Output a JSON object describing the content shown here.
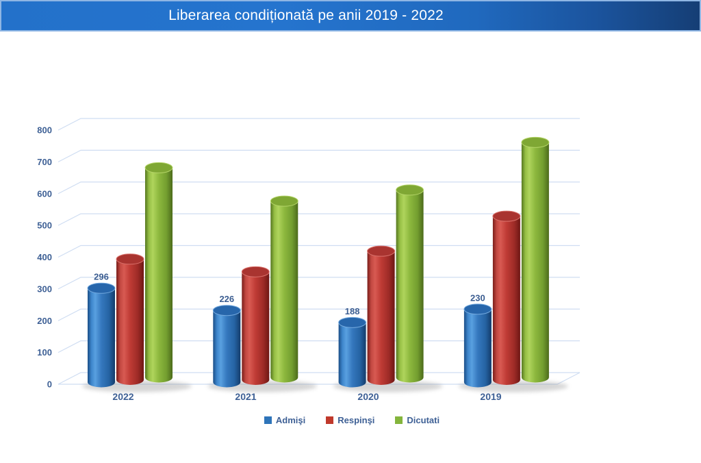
{
  "header": {
    "title": "Liberarea condiționată pe anii 2019 - 2022",
    "background_left_color": "#2371CA",
    "background_right_color": "#153E75",
    "border_color": "#8FB6E4",
    "text_color": "#FFFFFF"
  },
  "chart_data": {
    "type": "bar",
    "subtype": "3d-cylinder",
    "title": "Liberarea condiționată pe anii 2019 - 2022",
    "categories": [
      "2022",
      "2021",
      "2020",
      "2019"
    ],
    "series": [
      {
        "name": "Admişi",
        "color": "#2E74B9",
        "values": [
          296,
          226,
          188,
          230
        ],
        "data_labels_shown": true,
        "estimated": false
      },
      {
        "name": "Respinşi",
        "color": "#C0392B",
        "values": [
          380,
          340,
          405,
          515
        ],
        "data_labels_shown": false,
        "estimated": true
      },
      {
        "name": "Dicutati",
        "color": "#84B53C",
        "values": [
          660,
          555,
          590,
          740
        ],
        "data_labels_shown": false,
        "estimated": true
      }
    ],
    "ylim": [
      0,
      800
    ],
    "ytick_step": 100,
    "grid": true,
    "legend_position": "bottom",
    "axis_text_color": "#3E6095",
    "gridline_color": "#CFDDF2"
  }
}
